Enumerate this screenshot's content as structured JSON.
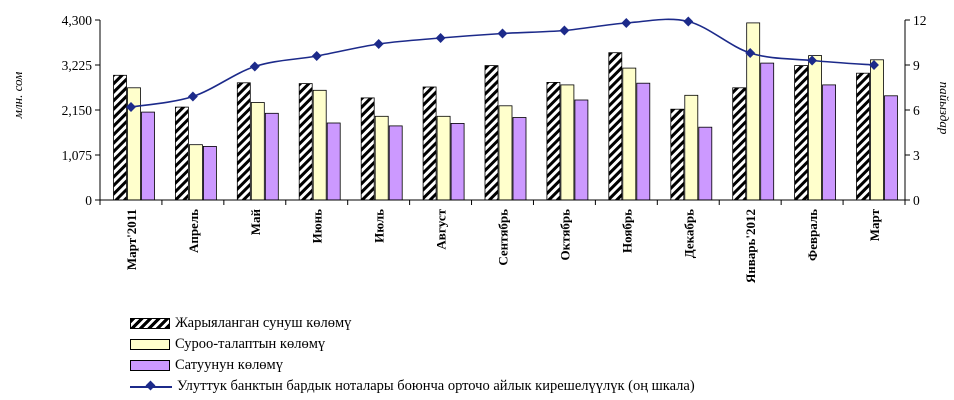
{
  "chart_data": {
    "type": "bar",
    "categories": [
      "Март'2011",
      "Апрель",
      "Май",
      "Июнь",
      "Июль",
      "Август",
      "Сентябрь",
      "Октябрь",
      "Ноябрь",
      "Декабрь",
      "Январь'2012",
      "Февраль",
      "Март"
    ],
    "series": [
      {
        "name": "Жарыяланган сунуш көлөмү",
        "type": "bar",
        "axis": "left",
        "pattern": "hatch",
        "values": [
          2980,
          2220,
          2800,
          2780,
          2440,
          2700,
          3210,
          2810,
          3520,
          2170,
          2680,
          3210,
          3030
        ]
      },
      {
        "name": "Суроо-талаптын көлөмү",
        "type": "bar",
        "axis": "left",
        "color": "#ffffcc",
        "values": [
          2680,
          1320,
          2330,
          2620,
          2000,
          2000,
          2250,
          2750,
          3150,
          2500,
          4230,
          3450,
          3350
        ]
      },
      {
        "name": "Сатуунун көлөмү",
        "type": "bar",
        "axis": "left",
        "color": "#cc99ff",
        "values": [
          2100,
          1280,
          2070,
          1840,
          1770,
          1830,
          1970,
          2390,
          2790,
          1740,
          3270,
          2750,
          2490
        ]
      },
      {
        "name": "Улуттук банктын бардык ноталары боюнча орточо айлык кирешелүүлүк (оң шкала)",
        "type": "line",
        "axis": "right",
        "color": "#1c2a8a",
        "values": [
          6.2,
          6.9,
          8.9,
          9.6,
          10.4,
          10.8,
          11.1,
          11.3,
          11.8,
          11.9,
          9.8,
          9.3,
          9.0
        ]
      }
    ],
    "y_left": {
      "label": "млн. сом",
      "min": 0,
      "max": 4300,
      "ticks": [
        "0",
        "1,075",
        "2,150",
        "3,225",
        "4,300"
      ]
    },
    "y_right": {
      "label": "пайыздар",
      "min": 0,
      "max": 12,
      "ticks": [
        "0",
        "3",
        "6",
        "9",
        "12"
      ]
    },
    "legend_position": "bottom-left",
    "grid": false
  },
  "colors": {
    "line": "#1c2a8a",
    "bar_demand": "#ffffcc",
    "bar_sales": "#cc99ff",
    "axis": "#000000"
  }
}
